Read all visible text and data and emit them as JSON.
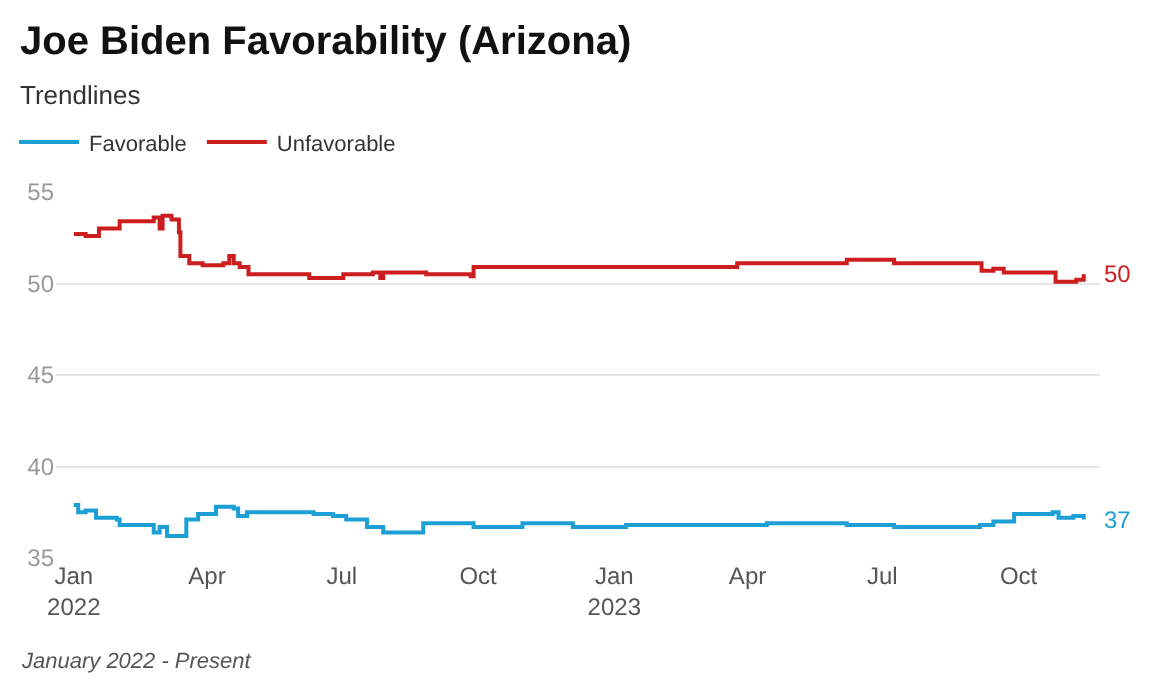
{
  "chart_data": {
    "type": "step",
    "title": "Joe Biden Favorability (Arizona)",
    "subtitle": "Trendlines",
    "annotations": [
      {
        "text": "50",
        "x": "2023-11-14",
        "y": 50.5
      },
      {
        "text": "37",
        "x": "2023-11-14",
        "y": 37.1
      },
      "January 2022 - Present"
    ],
    "series": [
      {
        "name": "Favorable",
        "color": "#1c9fd4",
        "x": [
          "2022-01-01",
          "2022-01-04",
          "2022-01-09",
          "2022-01-16",
          "2022-01-30",
          "2022-02-01",
          "2022-02-19",
          "2022-02-24",
          "2022-02-28",
          "2022-03-05",
          "2022-03-10",
          "2022-03-18",
          "2022-03-26",
          "2022-04-07",
          "2022-04-19",
          "2022-04-22",
          "2022-04-28",
          "2022-06-07",
          "2022-06-12",
          "2022-06-25",
          "2022-07-04",
          "2022-07-18",
          "2022-07-29",
          "2022-08-23",
          "2022-08-25",
          "2022-09-23",
          "2022-09-28",
          "2022-10-29",
          "2022-10-31",
          "2022-12-02",
          "2022-12-04",
          "2023-01-09",
          "2023-04-14",
          "2023-06-05",
          "2023-06-07",
          "2023-07-09",
          "2023-09-05",
          "2023-09-14",
          "2023-09-28",
          "2023-10-22",
          "2023-10-24",
          "2023-10-28",
          "2023-11-07",
          "2023-11-14"
        ],
        "values": [
          37.9,
          37.5,
          37.6,
          37.2,
          37.1,
          36.8,
          36.8,
          36.4,
          36.7,
          36.2,
          36.2,
          37.1,
          37.4,
          37.8,
          37.7,
          37.3,
          37.5,
          37.5,
          37.4,
          37.3,
          37.1,
          36.7,
          36.4,
          36.4,
          36.9,
          36.9,
          36.7,
          36.7,
          36.9,
          36.9,
          36.7,
          36.8,
          36.9,
          36.9,
          36.8,
          36.7,
          36.8,
          37.0,
          37.4,
          37.4,
          37.5,
          37.2,
          37.3,
          37.1
        ]
      },
      {
        "name": "Unfavorable",
        "color": "#cc1e1e",
        "x": [
          "2022-01-01",
          "2022-01-09",
          "2022-01-18",
          "2022-01-30",
          "2022-02-01",
          "2022-02-21",
          "2022-02-24",
          "2022-02-28",
          "2022-03-02",
          "2022-03-08",
          "2022-03-13",
          "2022-03-14",
          "2022-03-20",
          "2022-03-29",
          "2022-04-12",
          "2022-04-16",
          "2022-04-19",
          "2022-04-23",
          "2022-04-29",
          "2022-06-07",
          "2022-06-09",
          "2022-06-25",
          "2022-07-02",
          "2022-07-22",
          "2022-07-27",
          "2022-07-29",
          "2022-08-23",
          "2022-08-27",
          "2022-09-26",
          "2022-09-28",
          "2022-12-22",
          "2023-01-09",
          "2023-03-20",
          "2023-03-25",
          "2023-06-05",
          "2023-06-07",
          "2023-07-06",
          "2023-07-09",
          "2023-09-03",
          "2023-09-06",
          "2023-09-14",
          "2023-09-21",
          "2023-10-22",
          "2023-10-26",
          "2023-11-09",
          "2023-11-14"
        ],
        "values": [
          52.7,
          52.6,
          53.0,
          53.0,
          53.4,
          53.4,
          53.6,
          53.0,
          53.7,
          53.5,
          52.8,
          51.5,
          51.1,
          51.0,
          51.1,
          51.5,
          51.1,
          50.9,
          50.5,
          50.5,
          50.3,
          50.3,
          50.5,
          50.6,
          50.3,
          50.6,
          50.6,
          50.5,
          50.4,
          50.9,
          50.9,
          50.9,
          50.9,
          51.1,
          51.1,
          51.3,
          51.3,
          51.1,
          51.1,
          50.7,
          50.8,
          50.6,
          50.6,
          50.1,
          50.2,
          50.5
        ]
      }
    ],
    "xlim": [
      "2021-12-20",
      "2023-11-25"
    ],
    "xticks": [
      {
        "value": "2022-01-01",
        "label": "Jan\n2022"
      },
      {
        "value": "2022-04-01",
        "label": "Apr"
      },
      {
        "value": "2022-07-01",
        "label": "Jul"
      },
      {
        "value": "2022-10-01",
        "label": "Oct"
      },
      {
        "value": "2023-01-01",
        "label": "Jan\n2023"
      },
      {
        "value": "2023-04-01",
        "label": "Apr"
      },
      {
        "value": "2023-07-01",
        "label": "Jul"
      },
      {
        "value": "2023-10-01",
        "label": "Oct"
      }
    ],
    "ylim": [
      35,
      55
    ],
    "yticks": [
      35,
      40,
      45,
      50,
      55
    ],
    "grid": "y",
    "legend": "top left",
    "marker": "none",
    "line_style": "solid"
  }
}
